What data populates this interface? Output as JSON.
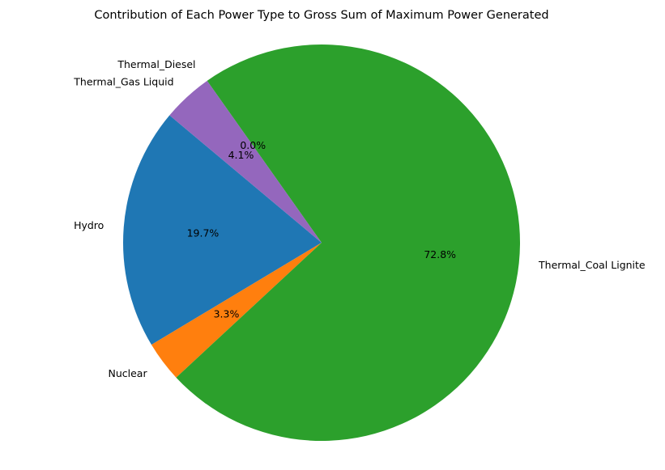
{
  "chart_data": {
    "type": "pie",
    "title": "Contribution of Each Power Type to Gross Sum of Maximum Power Generated",
    "categories": [
      "Hydro",
      "Nuclear",
      "Thermal_Coal Lignite",
      "Thermal_Diesel",
      "Thermal_Gas Liquid"
    ],
    "values": [
      19.7,
      3.3,
      72.8,
      0.0,
      4.1
    ],
    "percent_labels": [
      "19.7%",
      "3.3%",
      "72.8%",
      "0.0%",
      "4.1%"
    ],
    "colors": [
      "#1f77b4",
      "#ff7f0e",
      "#2ca02c",
      "#d62728",
      "#9467bd"
    ],
    "start_angle_deg": 140,
    "direction": "counterclockwise",
    "legend": "none"
  }
}
